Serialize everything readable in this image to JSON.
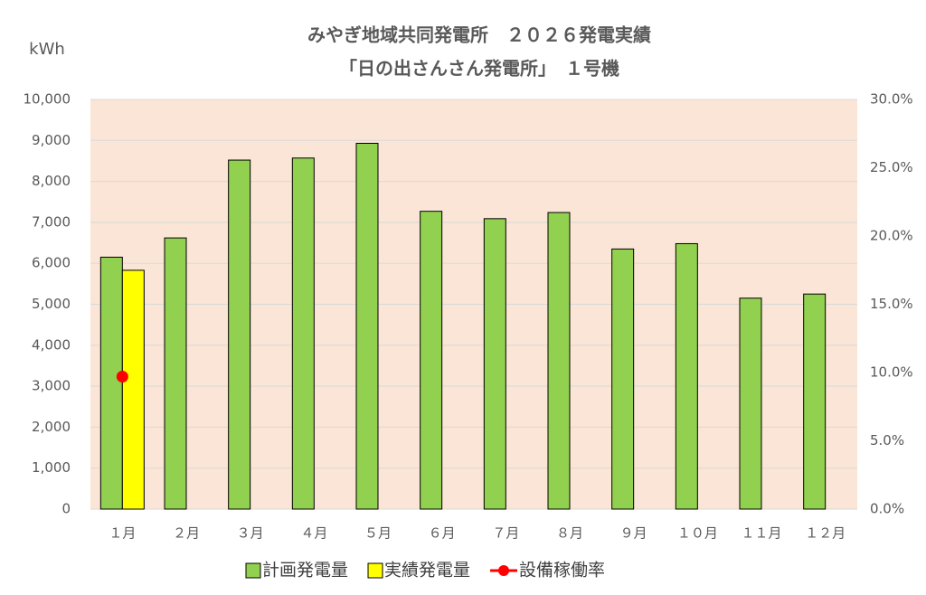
{
  "chart_data": {
    "type": "bar",
    "title": "みやぎ地域共同発電所　２０２６発電実績",
    "subtitle": "「日の出さんさん発電所」　１号機",
    "y_label": "kWh",
    "categories": [
      "１月",
      "２月",
      "３月",
      "４月",
      "５月",
      "６月",
      "７月",
      "８月",
      "９月",
      "１０月",
      "１１月",
      "１２月"
    ],
    "series": [
      {
        "name": "計画発電量",
        "type": "bar",
        "color": "#92d050",
        "values": [
          6150,
          6620,
          8520,
          8570,
          8930,
          7270,
          7090,
          7240,
          6350,
          6480,
          5150,
          5250
        ]
      },
      {
        "name": "実績発電量",
        "type": "bar",
        "color": "#ffff00",
        "values": [
          5830,
          null,
          null,
          null,
          null,
          null,
          null,
          null,
          null,
          null,
          null,
          null
        ]
      },
      {
        "name": "設備稼働率",
        "type": "line",
        "axis": "y2",
        "color": "#ff0000",
        "values": [
          9.7,
          null,
          null,
          null,
          null,
          null,
          null,
          null,
          null,
          null,
          null,
          null
        ]
      }
    ],
    "ylim": [
      0,
      10000
    ],
    "yticks": [
      0,
      {
        "value": 1000,
        "label": "1,000"
      },
      {
        "value": 2000,
        "label": "2,000"
      },
      {
        "value": 3000,
        "label": "3,000"
      },
      {
        "value": 4000,
        "label": "4,000"
      },
      {
        "value": 5000,
        "label": "5,000"
      },
      {
        "value": 6000,
        "label": "6,000"
      },
      {
        "value": 7000,
        "label": "7,000"
      },
      {
        "value": 8000,
        "label": "8,000"
      },
      {
        "value": 9000,
        "label": "9,000"
      },
      {
        "value": 10000,
        "label": "10,000"
      }
    ],
    "y2lim": [
      0,
      30
    ],
    "y2ticks": [
      {
        "value": 0,
        "label": "0.0%"
      },
      {
        "value": 5,
        "label": "5.0%"
      },
      {
        "value": 10,
        "label": "10.0%"
      },
      {
        "value": 15,
        "label": "15.0%"
      },
      {
        "value": 20,
        "label": "20.0%"
      },
      {
        "value": 25,
        "label": "25.0%"
      },
      {
        "value": 30,
        "label": "30.0%"
      }
    ],
    "grid": true,
    "plot_background": "#fbe5d6",
    "legend": "bottom"
  }
}
